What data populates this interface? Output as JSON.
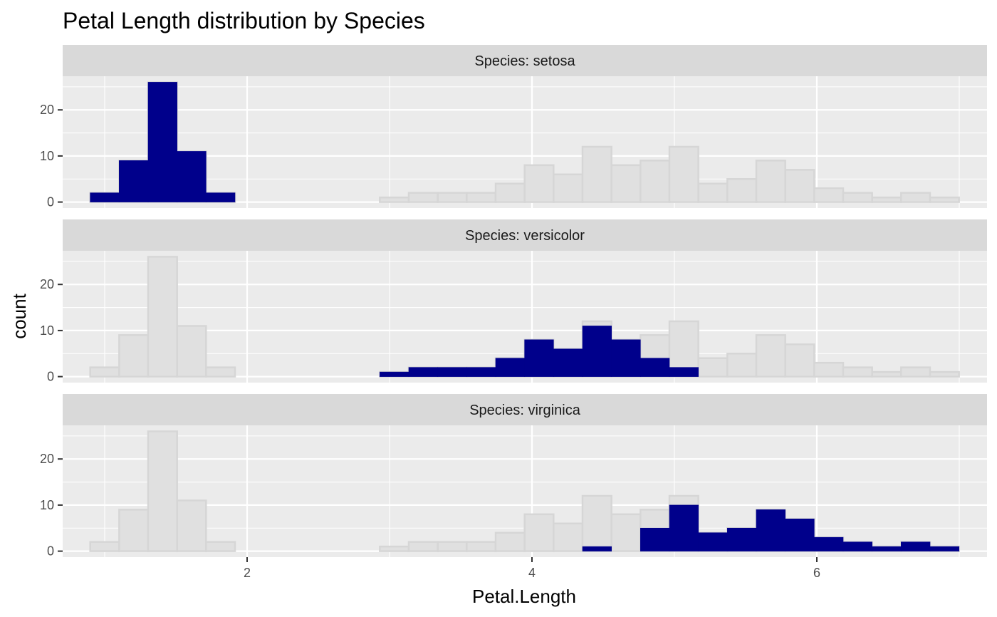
{
  "chart_data": {
    "type": "bar",
    "title": "Petal Length distribution by Species",
    "xlabel": "Petal.Length",
    "ylabel": "count",
    "xlim": [
      0.705,
      7.195
    ],
    "ylim": [
      -1.3,
      27.3
    ],
    "x_ticks": [
      2,
      4,
      6
    ],
    "y_ticks": [
      0,
      10,
      20
    ],
    "bin_width": 0.2033,
    "bin_centers": [
      1.0,
      1.2033,
      1.4067,
      1.61,
      1.8133,
      2.0167,
      2.22,
      2.4233,
      2.6267,
      2.83,
      3.0333,
      3.2367,
      3.44,
      3.6433,
      3.8467,
      4.05,
      4.2533,
      4.4567,
      4.66,
      4.8633,
      5.0667,
      5.27,
      5.4733,
      5.6767,
      5.88,
      6.0833,
      6.2867,
      6.49,
      6.6933,
      6.8967
    ],
    "background_series": {
      "name": "all",
      "values": [
        2,
        9,
        26,
        11,
        2,
        0,
        0,
        0,
        0,
        0,
        1,
        2,
        2,
        2,
        4,
        8,
        6,
        12,
        8,
        9,
        12,
        4,
        5,
        9,
        7,
        3,
        2,
        1,
        2,
        1
      ]
    },
    "panels": [
      {
        "strip": "Species: setosa",
        "values": [
          2,
          9,
          26,
          11,
          2,
          0,
          0,
          0,
          0,
          0,
          0,
          0,
          0,
          0,
          0,
          0,
          0,
          0,
          0,
          0,
          0,
          0,
          0,
          0,
          0,
          0,
          0,
          0,
          0,
          0
        ]
      },
      {
        "strip": "Species: versicolor",
        "values": [
          0,
          0,
          0,
          0,
          0,
          0,
          0,
          0,
          0,
          0,
          1,
          2,
          2,
          2,
          4,
          8,
          6,
          11,
          8,
          4,
          2,
          0,
          0,
          0,
          0,
          0,
          0,
          0,
          0,
          0
        ]
      },
      {
        "strip": "Species: virginica",
        "values": [
          0,
          0,
          0,
          0,
          0,
          0,
          0,
          0,
          0,
          0,
          0,
          0,
          0,
          0,
          0,
          0,
          0,
          1,
          0,
          5,
          10,
          4,
          5,
          9,
          7,
          3,
          2,
          1,
          2,
          1
        ]
      }
    ],
    "colors": {
      "highlight": "#00008b",
      "background_fill": "#e0e0e0",
      "background_stroke": "#d6d6d6",
      "panel_bg": "#ebebeb",
      "strip_bg": "#d9d9d9",
      "grid": "#ffffff"
    },
    "grid": true,
    "legend": "none"
  }
}
